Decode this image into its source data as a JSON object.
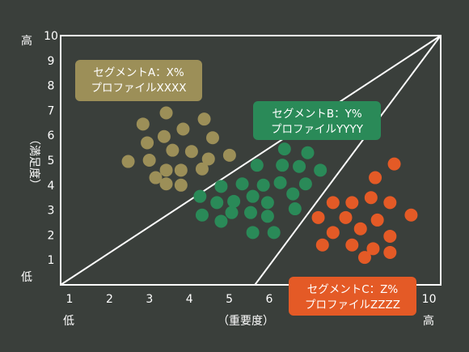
{
  "chart_data": {
    "type": "scatter",
    "xlabel": "（重要度）",
    "ylabel": "（満足度）",
    "xlim": [
      1,
      10
    ],
    "ylim": [
      0,
      10
    ],
    "x_ticks": [
      "1",
      "2",
      "3",
      "4",
      "5",
      "6",
      "7",
      "8",
      "9",
      "10"
    ],
    "y_ticks": [
      "1",
      "2",
      "3",
      "4",
      "5",
      "6",
      "7",
      "8",
      "9",
      "10"
    ],
    "x_low_label": "低",
    "x_high_label": "高",
    "y_low_label": "低",
    "y_high_label": "高",
    "grid": false,
    "colors": {
      "background": "#3a3f3b",
      "frame": "#ffffff",
      "segment_a": "#9c8f58",
      "segment_b": "#2a8a58",
      "segment_c": "#e45a26"
    },
    "series": [
      {
        "name": "セグメントA",
        "label_lines": [
          "セグメントA：X%",
          "プロファイルXXXX"
        ],
        "color": "#9c8f58",
        "points": [
          [
            3.5,
            6.9
          ],
          [
            4.4,
            6.65
          ],
          [
            2.95,
            6.45
          ],
          [
            3.9,
            6.25
          ],
          [
            4.6,
            5.9
          ],
          [
            3.45,
            5.95
          ],
          [
            3.05,
            5.7
          ],
          [
            3.65,
            5.4
          ],
          [
            4.1,
            5.35
          ],
          [
            3.1,
            5.0
          ],
          [
            4.5,
            5.05
          ],
          [
            2.6,
            4.95
          ],
          [
            3.85,
            4.6
          ],
          [
            4.35,
            4.65
          ],
          [
            3.25,
            4.3
          ],
          [
            3.5,
            4.6
          ],
          [
            3.85,
            4.0
          ],
          [
            5.0,
            5.2
          ],
          [
            3.5,
            4.05
          ]
        ]
      },
      {
        "name": "セグメントB",
        "label_lines": [
          "セグメントB：Y%",
          "プロファイルYYYY"
        ],
        "color": "#2a8a58",
        "points": [
          [
            6.3,
            5.45
          ],
          [
            6.85,
            5.3
          ],
          [
            6.65,
            4.75
          ],
          [
            6.25,
            4.8
          ],
          [
            5.65,
            4.8
          ],
          [
            7.15,
            4.6
          ],
          [
            5.3,
            4.05
          ],
          [
            5.8,
            4.0
          ],
          [
            6.2,
            4.1
          ],
          [
            6.8,
            4.05
          ],
          [
            4.8,
            3.95
          ],
          [
            6.5,
            3.65
          ],
          [
            5.55,
            3.55
          ],
          [
            4.3,
            3.55
          ],
          [
            4.7,
            3.3
          ],
          [
            5.1,
            3.35
          ],
          [
            5.9,
            3.3
          ],
          [
            6.55,
            3.05
          ],
          [
            5.5,
            2.9
          ],
          [
            5.9,
            2.75
          ],
          [
            4.35,
            2.8
          ],
          [
            4.8,
            2.55
          ],
          [
            5.05,
            2.9
          ],
          [
            5.55,
            2.1
          ],
          [
            6.05,
            2.1
          ]
        ]
      },
      {
        "name": "セグメントC",
        "label_lines": [
          "セグメントC：Z%",
          "プロファイルZZZZ"
        ],
        "color": "#e45a26",
        "points": [
          [
            8.9,
            4.85
          ],
          [
            8.45,
            4.3
          ],
          [
            8.35,
            3.5
          ],
          [
            8.8,
            3.3
          ],
          [
            7.45,
            3.3
          ],
          [
            7.9,
            3.3
          ],
          [
            9.3,
            2.8
          ],
          [
            7.1,
            2.7
          ],
          [
            7.75,
            2.7
          ],
          [
            8.5,
            2.6
          ],
          [
            8.1,
            2.25
          ],
          [
            7.45,
            2.1
          ],
          [
            8.8,
            1.95
          ],
          [
            7.2,
            1.6
          ],
          [
            7.9,
            1.6
          ],
          [
            8.4,
            1.45
          ],
          [
            8.8,
            1.3
          ],
          [
            8.2,
            1.1
          ]
        ]
      }
    ],
    "boundaries": [
      {
        "from": [
          1,
          0
        ],
        "to": [
          10,
          10
        ]
      },
      {
        "from": [
          5.6,
          0
        ],
        "to": [
          10,
          10
        ]
      }
    ]
  }
}
